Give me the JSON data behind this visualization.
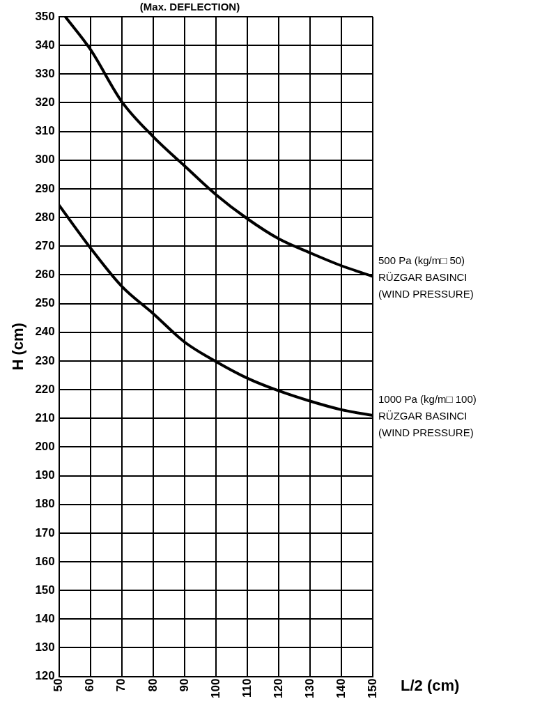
{
  "chart_data": {
    "type": "line",
    "title": "(Max. DEFLECTION)",
    "xlabel": "L/2 (cm)",
    "ylabel": "H (cm)",
    "series": [
      {
        "color": "#000000",
        "x": [
          52,
          60,
          70,
          80,
          90,
          100,
          110,
          120,
          130,
          140,
          150
        ],
        "values": [
          350,
          338.6,
          320.4,
          308.2,
          298,
          288,
          279.6,
          272.6,
          267.7,
          263.2,
          259.5
        ]
      },
      {
        "color": "#000000",
        "x": [
          50,
          60,
          70,
          80,
          90,
          100,
          110,
          120,
          130,
          140,
          150
        ],
        "values": [
          284.3,
          269.4,
          256,
          246.5,
          236.6,
          229.8,
          224,
          219.6,
          216,
          213,
          211
        ]
      }
    ],
    "annotations": [
      {
        "text": "500 Pa (kg/m□ 50)\nRÜZGAR BASINCI\n(WIND PRESSURE)",
        "x": 150,
        "y": 259.5
      },
      {
        "text": "1000 Pa (kg/m□ 100)\nRÜZGAR BASINCI\n(WIND PRESSURE)",
        "x": 150,
        "y": 211
      }
    ],
    "xlim": [
      50,
      150
    ],
    "xticks": [
      50,
      60,
      70,
      80,
      90,
      100,
      110,
      120,
      130,
      140,
      150
    ],
    "ylim": [
      120,
      350
    ],
    "yticks": [
      120,
      130,
      140,
      150,
      160,
      170,
      180,
      190,
      200,
      210,
      220,
      230,
      240,
      250,
      260,
      270,
      280,
      290,
      300,
      310,
      320,
      330,
      340,
      350
    ],
    "grid": true,
    "legend": false,
    "marker": "none",
    "line_style": "solid"
  }
}
